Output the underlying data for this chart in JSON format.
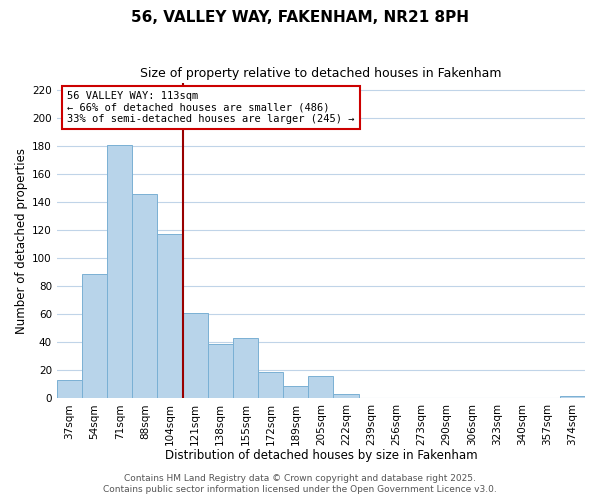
{
  "title": "56, VALLEY WAY, FAKENHAM, NR21 8PH",
  "subtitle": "Size of property relative to detached houses in Fakenham",
  "xlabel": "Distribution of detached houses by size in Fakenham",
  "ylabel": "Number of detached properties",
  "categories": [
    "37sqm",
    "54sqm",
    "71sqm",
    "88sqm",
    "104sqm",
    "121sqm",
    "138sqm",
    "155sqm",
    "172sqm",
    "189sqm",
    "205sqm",
    "222sqm",
    "239sqm",
    "256sqm",
    "273sqm",
    "290sqm",
    "306sqm",
    "323sqm",
    "340sqm",
    "357sqm",
    "374sqm"
  ],
  "values": [
    13,
    89,
    181,
    146,
    117,
    61,
    39,
    43,
    19,
    9,
    16,
    3,
    0,
    0,
    0,
    0,
    0,
    0,
    0,
    0,
    2
  ],
  "bar_color": "#b8d4ea",
  "bar_edge_color": "#7ab0d4",
  "highlight_line_color": "#990000",
  "annotation_text": "56 VALLEY WAY: 113sqm\n← 66% of detached houses are smaller (486)\n33% of semi-detached houses are larger (245) →",
  "annotation_box_color": "#ffffff",
  "annotation_box_edge_color": "#cc0000",
  "ylim": [
    0,
    225
  ],
  "yticks": [
    0,
    20,
    40,
    60,
    80,
    100,
    120,
    140,
    160,
    180,
    200,
    220
  ],
  "background_color": "#ffffff",
  "grid_color": "#c0d4e8",
  "footer_line1": "Contains HM Land Registry data © Crown copyright and database right 2025.",
  "footer_line2": "Contains public sector information licensed under the Open Government Licence v3.0.",
  "title_fontsize": 11,
  "subtitle_fontsize": 9,
  "xlabel_fontsize": 8.5,
  "ylabel_fontsize": 8.5,
  "tick_fontsize": 7.5,
  "annotation_fontsize": 7.5,
  "footer_fontsize": 6.5
}
